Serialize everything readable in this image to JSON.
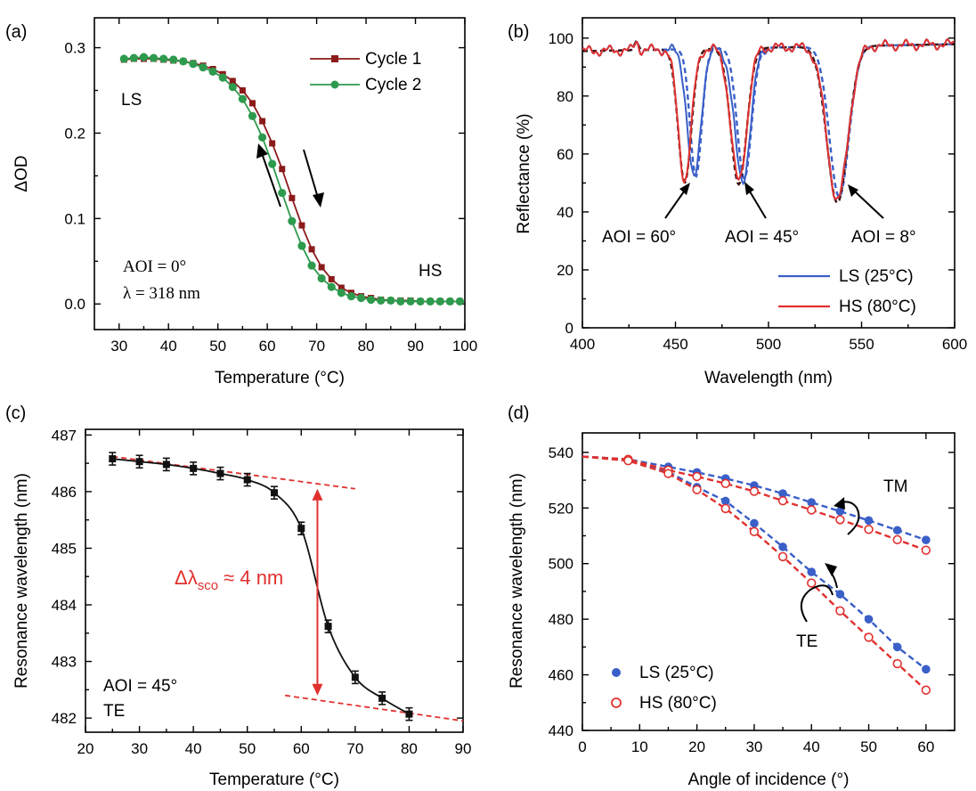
{
  "colors": {
    "cycle1": "#8b1a1a",
    "cycle2": "#2e9a4e",
    "ls": "#3a5fc8",
    "hs": "#e0312f",
    "black": "#111111",
    "fit": "#e0312f"
  },
  "chart_data": [
    {
      "panel_label": "(a)",
      "type": "line",
      "xlabel": "Temperature (°C)",
      "ylabel": "ΔOD",
      "xlim": [
        25,
        100
      ],
      "ylim": [
        -0.03,
        0.335
      ],
      "xticks": [
        30,
        40,
        50,
        60,
        70,
        80,
        90,
        100
      ],
      "yticks": [
        0.0,
        0.1,
        0.2,
        0.3
      ],
      "ytick_labels": [
        "0.0",
        "0.1",
        "0.2",
        "0.3"
      ],
      "legend": {
        "placement": "top-right"
      },
      "annotations": {
        "ls": "LS",
        "hs": "HS",
        "aoi": "AOI = 0°",
        "lambda": "λ = 318 nm"
      },
      "series": [
        {
          "name": "Cycle 1",
          "marker": "square",
          "x": [
            31,
            33,
            35,
            37,
            39,
            41,
            43,
            45,
            47,
            49,
            51,
            53,
            55,
            57,
            59,
            61,
            63,
            65,
            67,
            69,
            71,
            73,
            75,
            77,
            79,
            81,
            83,
            85,
            87,
            89,
            91,
            93,
            95,
            97,
            99
          ],
          "values": [
            0.286,
            0.287,
            0.287,
            0.287,
            0.286,
            0.285,
            0.284,
            0.282,
            0.279,
            0.275,
            0.269,
            0.261,
            0.25,
            0.235,
            0.214,
            0.188,
            0.158,
            0.124,
            0.092,
            0.064,
            0.043,
            0.029,
            0.019,
            0.013,
            0.009,
            0.007,
            0.005,
            0.004,
            0.004,
            0.004,
            0.003,
            0.003,
            0.003,
            0.003,
            0.003
          ]
        },
        {
          "name": "Cycle 2",
          "marker": "circle",
          "x": [
            31,
            33,
            35,
            37,
            39,
            41,
            43,
            45,
            47,
            49,
            51,
            53,
            55,
            57,
            59,
            61,
            63,
            65,
            67,
            69,
            71,
            73,
            75,
            77,
            79,
            81,
            83,
            85,
            87,
            89,
            91,
            93,
            95,
            97,
            99
          ],
          "values": [
            0.287,
            0.288,
            0.289,
            0.288,
            0.287,
            0.286,
            0.284,
            0.281,
            0.277,
            0.272,
            0.265,
            0.254,
            0.24,
            0.22,
            0.195,
            0.164,
            0.13,
            0.097,
            0.068,
            0.045,
            0.03,
            0.02,
            0.013,
            0.009,
            0.007,
            0.005,
            0.004,
            0.004,
            0.003,
            0.003,
            0.003,
            0.003,
            0.003,
            0.003,
            0.003
          ]
        }
      ]
    },
    {
      "panel_label": "(b)",
      "type": "line",
      "xlabel": "Wavelength (nm)",
      "ylabel": "Reflectance (%)",
      "xlim": [
        400,
        600
      ],
      "ylim": [
        0,
        107
      ],
      "xticks": [
        400,
        450,
        500,
        550,
        600
      ],
      "yticks": [
        0,
        20,
        40,
        60,
        80,
        100
      ],
      "legend": {
        "placement": "bottom-right"
      },
      "annotations": [
        {
          "text": "AOI = 60°"
        },
        {
          "text": "AOI = 45°"
        },
        {
          "text": "AOI = 8°"
        }
      ],
      "dips": {
        "ls": [
          {
            "center": 460,
            "depth": 45,
            "width": 5
          },
          {
            "center": 486,
            "depth": 46,
            "width": 6
          },
          {
            "center": 537,
            "depth": 53,
            "width": 8
          }
        ],
        "hs": [
          {
            "center": 455,
            "depth": 45,
            "width": 5
          },
          {
            "center": 484,
            "depth": 46,
            "width": 6
          },
          {
            "center": 537,
            "depth": 53,
            "width": 8
          }
        ]
      },
      "series": [
        {
          "name": "LS (25°C)"
        },
        {
          "name": "HS (80°C)"
        }
      ]
    },
    {
      "panel_label": "(c)",
      "type": "line",
      "xlabel": "Temperature (°C)",
      "ylabel": "Resonance wavelength (nm)",
      "xlim": [
        20,
        90
      ],
      "ylim": [
        481.75,
        487.1
      ],
      "xticks": [
        20,
        30,
        40,
        50,
        60,
        70,
        80,
        90
      ],
      "yticks": [
        482,
        483,
        484,
        485,
        486,
        487
      ],
      "annotations": {
        "shift": "Δλ",
        "shift_sub": "sco",
        "shift_tail": " ≈ 4 nm",
        "aoi": "AOI = 45°",
        "mode": "TE"
      },
      "fit_lines": [
        {
          "x": [
            25,
            70
          ],
          "y": [
            486.62,
            486.05
          ]
        },
        {
          "x": [
            57,
            90
          ],
          "y": [
            482.4,
            481.95
          ]
        }
      ],
      "series": [
        {
          "x": [
            25,
            30,
            35,
            40,
            45,
            50,
            55,
            60,
            65,
            70,
            75,
            80
          ],
          "values": [
            486.58,
            486.53,
            486.48,
            486.41,
            486.32,
            486.21,
            485.98,
            485.35,
            483.62,
            482.72,
            482.35,
            482.07
          ]
        }
      ]
    },
    {
      "panel_label": "(d)",
      "type": "scatter",
      "xlabel": "Angle of incidence (°)",
      "ylabel": "Resonance wavelength (nm)",
      "xlim": [
        0,
        65
      ],
      "ylim": [
        440,
        547
      ],
      "xticks": [
        0,
        10,
        20,
        30,
        40,
        50,
        60
      ],
      "yticks": [
        440,
        460,
        480,
        500,
        520,
        540
      ],
      "legend": {
        "placement": "bottom-left"
      },
      "annotations": {
        "tm": "TM",
        "te": "TE"
      },
      "series": [
        {
          "name": "LS (25°C)",
          "fill": "solid",
          "x": [
            8,
            15,
            20,
            25,
            30,
            35,
            40,
            45,
            50,
            55,
            60
          ],
          "tm": [
            537.5,
            534.8,
            532.8,
            530.6,
            528.1,
            525.2,
            522,
            518.8,
            515.5,
            512,
            508.5
          ],
          "te": [
            537.3,
            533,
            527.5,
            522.5,
            514.5,
            506,
            497,
            489,
            480,
            470,
            462
          ]
        },
        {
          "name": "HS (80°C)",
          "fill": "open",
          "x": [
            8,
            15,
            20,
            25,
            30,
            35,
            40,
            45,
            50,
            55,
            60
          ],
          "tm": [
            537.5,
            533.6,
            531.3,
            528.8,
            526,
            522.6,
            519.3,
            515.8,
            512.3,
            508.6,
            504.8
          ],
          "te": [
            537,
            532.4,
            526.6,
            519.8,
            511.5,
            502.5,
            493,
            483,
            473.5,
            464,
            454.5
          ]
        }
      ]
    }
  ]
}
